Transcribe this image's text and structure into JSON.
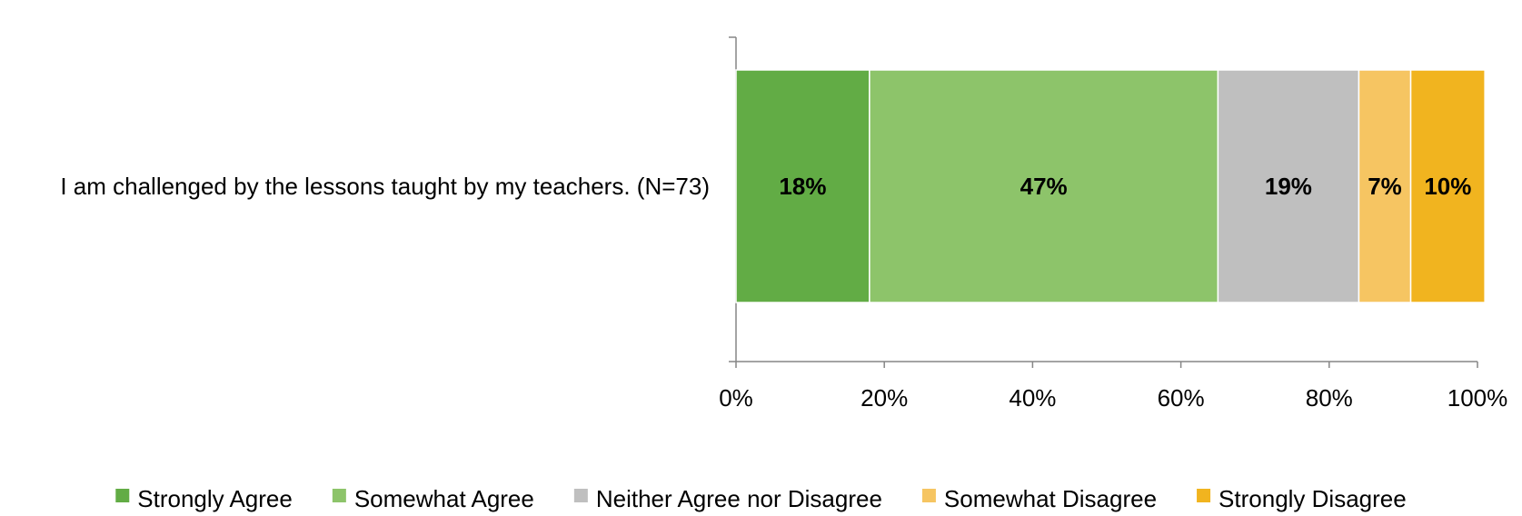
{
  "chart_data": {
    "type": "bar",
    "orientation": "horizontal",
    "stacked": "percent",
    "categories": [
      "I am challenged by the lessons taught by my teachers. (N=73)"
    ],
    "series": [
      {
        "name": "Strongly Agree",
        "values": [
          18
        ],
        "label": "18%",
        "color": "#62ac45"
      },
      {
        "name": "Somewhat Agree",
        "values": [
          47
        ],
        "label": "47%",
        "color": "#8dc46a"
      },
      {
        "name": "Neither Agree nor Disagree",
        "values": [
          19
        ],
        "label": "19%",
        "color": "#bfbfbf"
      },
      {
        "name": "Somewhat Disagree",
        "values": [
          7
        ],
        "label": "7%",
        "color": "#f6c562"
      },
      {
        "name": "Strongly Disagree",
        "values": [
          10
        ],
        "label": "10%",
        "color": "#f1b41f"
      }
    ],
    "xlim": [
      0,
      100
    ],
    "xticks": [
      "0%",
      "20%",
      "40%",
      "60%",
      "80%",
      "100%"
    ],
    "grid": false,
    "legend_position": "bottom"
  }
}
